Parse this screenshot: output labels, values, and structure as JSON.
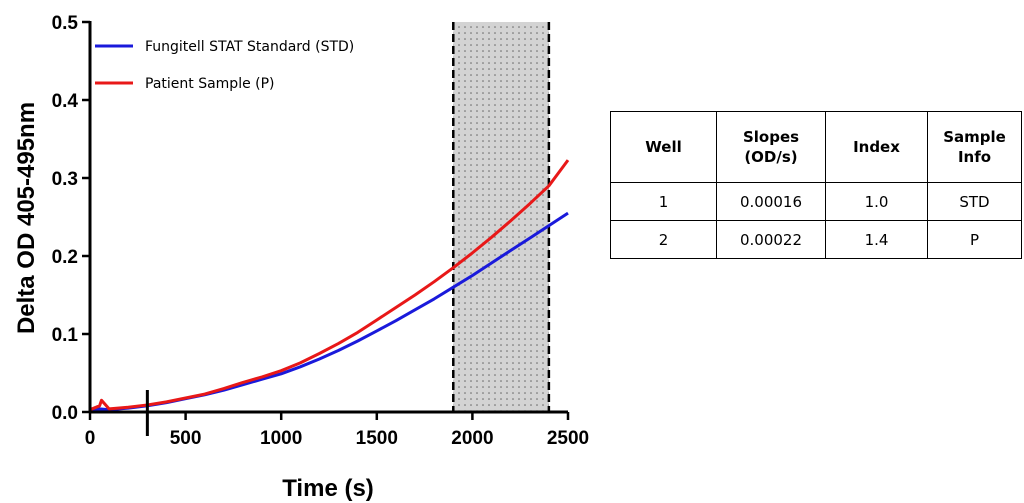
{
  "chart_data": {
    "type": "line",
    "xlabel": "Time (s)",
    "ylabel": "Delta OD 405-495nm",
    "xlim": [
      0,
      2500
    ],
    "ylim": [
      0,
      0.5
    ],
    "x_ticks": [
      "0",
      "500",
      "1000",
      "1500",
      "2000",
      "2500"
    ],
    "y_ticks": [
      "0.0",
      "0.1",
      "0.2",
      "0.3",
      "0.4",
      "0.5"
    ],
    "legend_position": "top-left",
    "grid": false,
    "shaded_region": {
      "x_start": 1900,
      "x_end": 2400,
      "fill": "#d3d3d3",
      "pattern": "dotted"
    },
    "tick_marker": {
      "x": 300
    },
    "series": [
      {
        "name": "Fungitell STAT Standard (STD)",
        "color": "#1a1adb",
        "x": [
          0,
          50,
          100,
          200,
          300,
          400,
          500,
          600,
          700,
          800,
          900,
          1000,
          1100,
          1200,
          1300,
          1400,
          1500,
          1600,
          1700,
          1800,
          1900,
          2000,
          2100,
          2200,
          2300,
          2400,
          2500
        ],
        "y": [
          0.003,
          0.004,
          0.003,
          0.005,
          0.008,
          0.012,
          0.017,
          0.022,
          0.028,
          0.035,
          0.042,
          0.049,
          0.058,
          0.068,
          0.079,
          0.091,
          0.104,
          0.117,
          0.131,
          0.145,
          0.16,
          0.175,
          0.191,
          0.207,
          0.223,
          0.239,
          0.255
        ]
      },
      {
        "name": "Patient Sample (P)",
        "color": "#e81818",
        "x": [
          0,
          50,
          60,
          100,
          200,
          300,
          400,
          500,
          600,
          700,
          800,
          900,
          1000,
          1100,
          1200,
          1300,
          1400,
          1500,
          1600,
          1700,
          1800,
          1900,
          2000,
          2100,
          2200,
          2300,
          2400,
          2500
        ],
        "y": [
          0.003,
          0.008,
          0.015,
          0.004,
          0.006,
          0.009,
          0.013,
          0.018,
          0.023,
          0.03,
          0.038,
          0.045,
          0.053,
          0.063,
          0.075,
          0.088,
          0.102,
          0.118,
          0.134,
          0.15,
          0.167,
          0.185,
          0.204,
          0.224,
          0.245,
          0.267,
          0.29,
          0.323
        ]
      }
    ]
  },
  "table": {
    "headers": [
      [
        "Well"
      ],
      [
        "Slopes",
        "(OD/s)"
      ],
      [
        "Index"
      ],
      [
        "Sample",
        "Info"
      ]
    ],
    "rows": [
      [
        "1",
        "0.00016",
        "1.0",
        "STD"
      ],
      [
        "2",
        "0.00022",
        "1.4",
        "P"
      ]
    ]
  }
}
